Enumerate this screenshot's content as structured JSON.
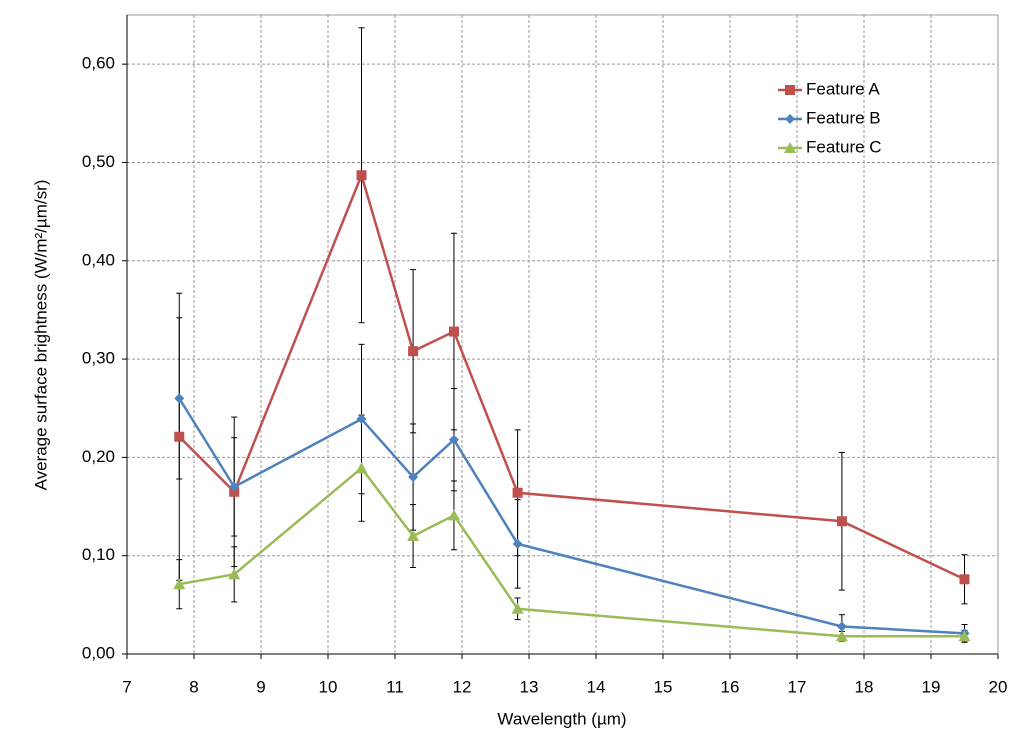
{
  "chart_data": {
    "type": "line",
    "x_label": "Wavelength (µm)",
    "y_label": "Average surface brightness (W/m²/µm/sr)",
    "x": [
      7.78,
      8.6,
      10.5,
      11.27,
      11.88,
      12.83,
      17.67,
      19.5
    ],
    "series": [
      {
        "name": "Feature A",
        "color": "#c0504d",
        "marker": "square",
        "values": [
          0.221,
          0.165,
          0.487,
          0.308,
          0.328,
          0.164,
          0.135,
          0.076
        ],
        "errors": [
          0.146,
          0.076,
          0.15,
          0.083,
          0.1,
          0.064,
          0.07,
          0.025
        ]
      },
      {
        "name": "Feature B",
        "color": "#4f81bd",
        "marker": "diamond",
        "values": [
          0.26,
          0.17,
          0.239,
          0.18,
          0.218,
          0.112,
          0.028,
          0.021
        ],
        "errors": [
          0.082,
          0.05,
          0.076,
          0.054,
          0.052,
          0.045,
          0.012,
          0.009
        ]
      },
      {
        "name": "Feature C",
        "color": "#9bbb59",
        "marker": "triangle",
        "values": [
          0.071,
          0.081,
          0.189,
          0.12,
          0.141,
          0.046,
          0.018,
          0.018
        ],
        "errors": [
          0.025,
          0.028,
          0.054,
          0.032,
          0.035,
          0.011,
          0.005,
          0.006
        ]
      }
    ],
    "xlim": [
      7,
      20
    ],
    "xticks": [
      7,
      8,
      9,
      10,
      11,
      12,
      13,
      14,
      15,
      16,
      17,
      18,
      19,
      20
    ],
    "ylim": [
      0,
      0.65
    ],
    "yticks": [
      {
        "value": 0,
        "label": "0,00"
      },
      {
        "value": 0.1,
        "label": "0,10"
      },
      {
        "value": 0.2,
        "label": "0,20"
      },
      {
        "value": 0.3,
        "label": "0,30"
      },
      {
        "value": 0.4,
        "label": "0,40"
      },
      {
        "value": 0.5,
        "label": "0,50"
      },
      {
        "value": 0.6,
        "label": "0,60"
      }
    ],
    "grid": true,
    "error_bar_color": "#000000",
    "legend": "upper right"
  }
}
